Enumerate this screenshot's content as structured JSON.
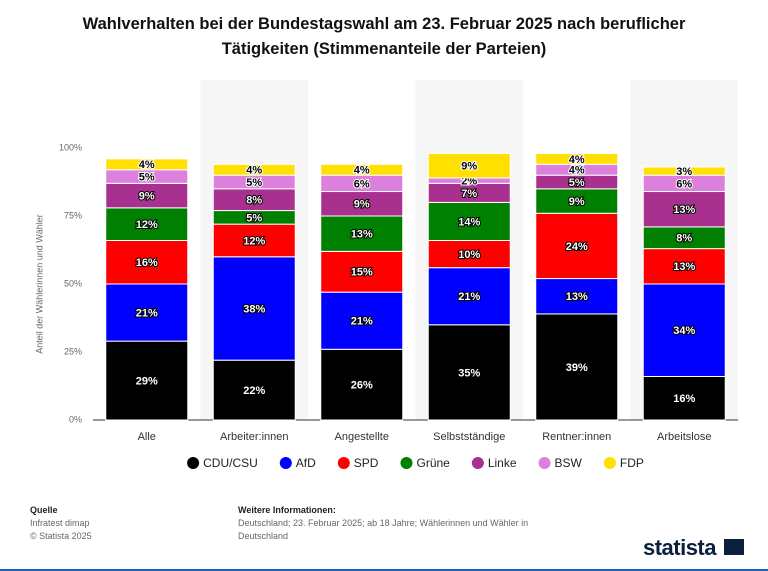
{
  "chart_data": {
    "type": "stacked_bar",
    "title": "Wahlverhalten bei der Bundestagswahl am 23. Februar 2025 nach beruflicher Tätigkeiten (Stimmenanteile der Parteien)",
    "y_label": "Anteil der Wählerinnen und Wähler",
    "categories": [
      "Alle",
      "Arbeiter:innen",
      "Angestellte",
      "Selbstständige",
      "Rentner:innen",
      "Arbeitslose"
    ],
    "series": [
      {
        "name": "CDU/CSU",
        "color": "#000000",
        "values": [
          29,
          22,
          26,
          35,
          39,
          16
        ],
        "value_labels": [
          "29%",
          "22%",
          "26%",
          "35%",
          "39%",
          "16%"
        ]
      },
      {
        "name": "AfD",
        "color": "#0000ff",
        "values": [
          21,
          38,
          21,
          21,
          13,
          34
        ],
        "value_labels": [
          "21%",
          "38%",
          "21%",
          "21%",
          "13%",
          "34%"
        ]
      },
      {
        "name": "SPD",
        "color": "#ff0000",
        "values": [
          16,
          12,
          15,
          10,
          24,
          13
        ],
        "value_labels": [
          "16%",
          "12%",
          "15%",
          "10%",
          "24%",
          "13%"
        ]
      },
      {
        "name": "Grüne",
        "color": "#008000",
        "values": [
          12,
          5,
          13,
          14,
          9,
          8
        ],
        "value_labels": [
          "12%",
          "5%",
          "13%",
          "14%",
          "9%",
          "8%"
        ]
      },
      {
        "name": "Linke",
        "color": "#a8308f",
        "values": [
          9,
          8,
          9,
          7,
          5,
          13
        ],
        "value_labels": [
          "9%",
          "8%",
          "9%",
          "7%",
          "5%",
          "13%"
        ]
      },
      {
        "name": "BSW",
        "color": "#dd80dd",
        "values": [
          5,
          5,
          6,
          2,
          4,
          6
        ],
        "value_labels": [
          "5%",
          "5%",
          "6%",
          "2%",
          "4%",
          "6%"
        ]
      },
      {
        "name": "FDP",
        "color": "#ffe000",
        "values": [
          4,
          4,
          4,
          9,
          4,
          3
        ],
        "value_labels": [
          "4%",
          "4%",
          "4%",
          "9%",
          "4%",
          "3%"
        ]
      }
    ],
    "ylim": [
      0,
      100
    ],
    "yticks": [
      {
        "value": 0,
        "label": "0%"
      },
      {
        "value": 25,
        "label": "25%"
      },
      {
        "value": 50,
        "label": "50%"
      },
      {
        "value": 75,
        "label": "75%"
      },
      {
        "value": 100,
        "label": "100%"
      }
    ],
    "grid": false,
    "legend": "bottom"
  },
  "footer": {
    "source_title": "Quelle",
    "source": "Infratest dimap",
    "copyright": "© Statista 2025",
    "info_title": "Weitere Informationen:",
    "info": "Deutschland; 23. Februar 2025; ab 18 Jahre; Wählerinnen und Wähler in Deutschland",
    "logo": "statista"
  }
}
